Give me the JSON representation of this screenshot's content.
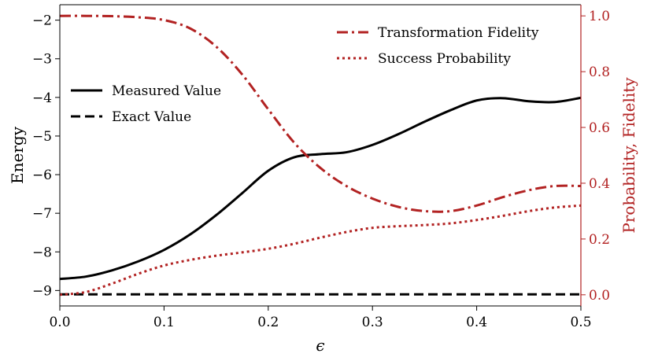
{
  "chart_data": {
    "type": "line",
    "xlabel": "ϵ",
    "ylabel_left": "Energy",
    "ylabel_right": "Probability, Fidelity",
    "xlim": [
      0,
      0.5
    ],
    "ylim_left": [
      -9.4,
      -1.6
    ],
    "ylim_right": [
      -0.04,
      1.04
    ],
    "x_ticks": [
      0.0,
      0.1,
      0.2,
      0.3,
      0.4,
      0.5
    ],
    "x_tick_labels": [
      "0.0",
      "0.1",
      "0.2",
      "0.3",
      "0.4",
      "0.5"
    ],
    "y_left_ticks": [
      -9,
      -8,
      -7,
      -6,
      -5,
      -4,
      -3,
      -2
    ],
    "y_left_tick_labels": [
      "−9",
      "−8",
      "−7",
      "−6",
      "−5",
      "−4",
      "−3",
      "−2"
    ],
    "y_right_ticks": [
      0.0,
      0.2,
      0.4,
      0.6,
      0.8,
      1.0
    ],
    "y_right_tick_labels": [
      "0.0",
      "0.2",
      "0.4",
      "0.6",
      "0.8",
      "1.0"
    ],
    "grid": false,
    "colors": {
      "left_axis": "#000000",
      "right_axis": "#b22222",
      "series_red": "#b22222",
      "series_black": "#000000"
    },
    "series": [
      {
        "name": "Measured Value",
        "axis": "left",
        "style": "solid",
        "color": "#000000",
        "x": [
          0,
          0.025,
          0.05,
          0.075,
          0.1,
          0.125,
          0.15,
          0.175,
          0.2,
          0.225,
          0.25,
          0.275,
          0.3,
          0.325,
          0.35,
          0.375,
          0.4,
          0.425,
          0.45,
          0.475,
          0.5
        ],
        "y": [
          -8.7,
          -8.64,
          -8.48,
          -8.25,
          -7.95,
          -7.55,
          -7.05,
          -6.48,
          -5.9,
          -5.55,
          -5.47,
          -5.42,
          -5.23,
          -4.95,
          -4.63,
          -4.33,
          -4.08,
          -4.02,
          -4.1,
          -4.12,
          -4.01
        ]
      },
      {
        "name": "Exact Value",
        "axis": "left",
        "style": "dashed",
        "color": "#000000",
        "x": [
          0,
          0.5
        ],
        "y": [
          -9.1,
          -9.1
        ]
      },
      {
        "name": "Transformation Fidelity",
        "axis": "right",
        "style": "dashdot",
        "color": "#b22222",
        "x": [
          0,
          0.025,
          0.05,
          0.075,
          0.1,
          0.125,
          0.15,
          0.175,
          0.2,
          0.225,
          0.25,
          0.275,
          0.3,
          0.325,
          0.35,
          0.375,
          0.4,
          0.425,
          0.45,
          0.475,
          0.5
        ],
        "y": [
          1.0,
          1.0,
          0.999,
          0.995,
          0.985,
          0.955,
          0.89,
          0.79,
          0.665,
          0.545,
          0.455,
          0.39,
          0.345,
          0.315,
          0.3,
          0.3,
          0.32,
          0.35,
          0.375,
          0.39,
          0.39
        ]
      },
      {
        "name": "Success Probability",
        "axis": "right",
        "style": "dotted",
        "color": "#b22222",
        "x": [
          0,
          0.025,
          0.05,
          0.075,
          0.1,
          0.125,
          0.15,
          0.175,
          0.2,
          0.225,
          0.25,
          0.275,
          0.3,
          0.325,
          0.35,
          0.375,
          0.4,
          0.425,
          0.45,
          0.475,
          0.5
        ],
        "y": [
          0.0,
          0.01,
          0.04,
          0.075,
          0.105,
          0.125,
          0.14,
          0.152,
          0.165,
          0.183,
          0.205,
          0.225,
          0.24,
          0.246,
          0.25,
          0.256,
          0.268,
          0.283,
          0.3,
          0.313,
          0.32
        ]
      }
    ],
    "legends": [
      {
        "position": "center-left",
        "entries": [
          "Measured Value",
          "Exact Value"
        ]
      },
      {
        "position": "top-right",
        "entries": [
          "Transformation Fidelity",
          "Success Probability"
        ]
      }
    ]
  }
}
